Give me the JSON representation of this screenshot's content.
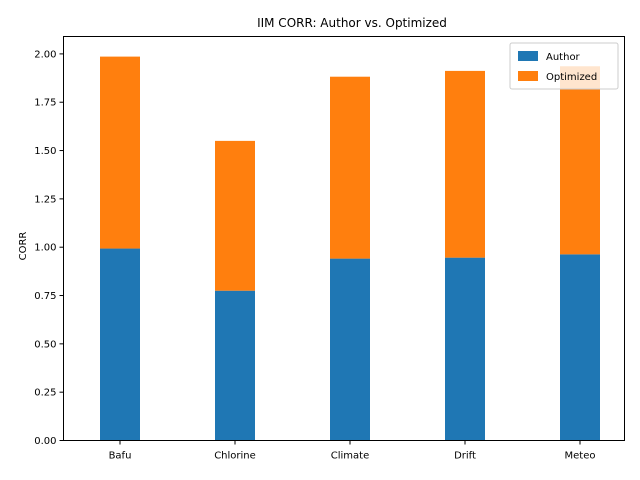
{
  "chart_data": {
    "type": "bar",
    "stacked": true,
    "title": "IIM CORR: Author vs. Optimized",
    "xlabel": "",
    "ylabel": "CORR",
    "categories": [
      "Bafu",
      "Chlorine",
      "Climate",
      "Drift",
      "Meteo"
    ],
    "series": [
      {
        "name": "Author",
        "color": "#1f77b4",
        "values": [
          0.993,
          0.775,
          0.941,
          0.946,
          0.963
        ]
      },
      {
        "name": "Optimized",
        "color": "#ff7f0e",
        "values": [
          0.993,
          0.775,
          0.941,
          0.966,
          0.973
        ]
      }
    ],
    "ylim": [
      0,
      2.09
    ],
    "yticks": [
      "0.00",
      "0.25",
      "0.50",
      "0.75",
      "1.00",
      "1.25",
      "1.50",
      "1.75",
      "2.00"
    ],
    "legend_position": "top-right",
    "grid": false
  }
}
